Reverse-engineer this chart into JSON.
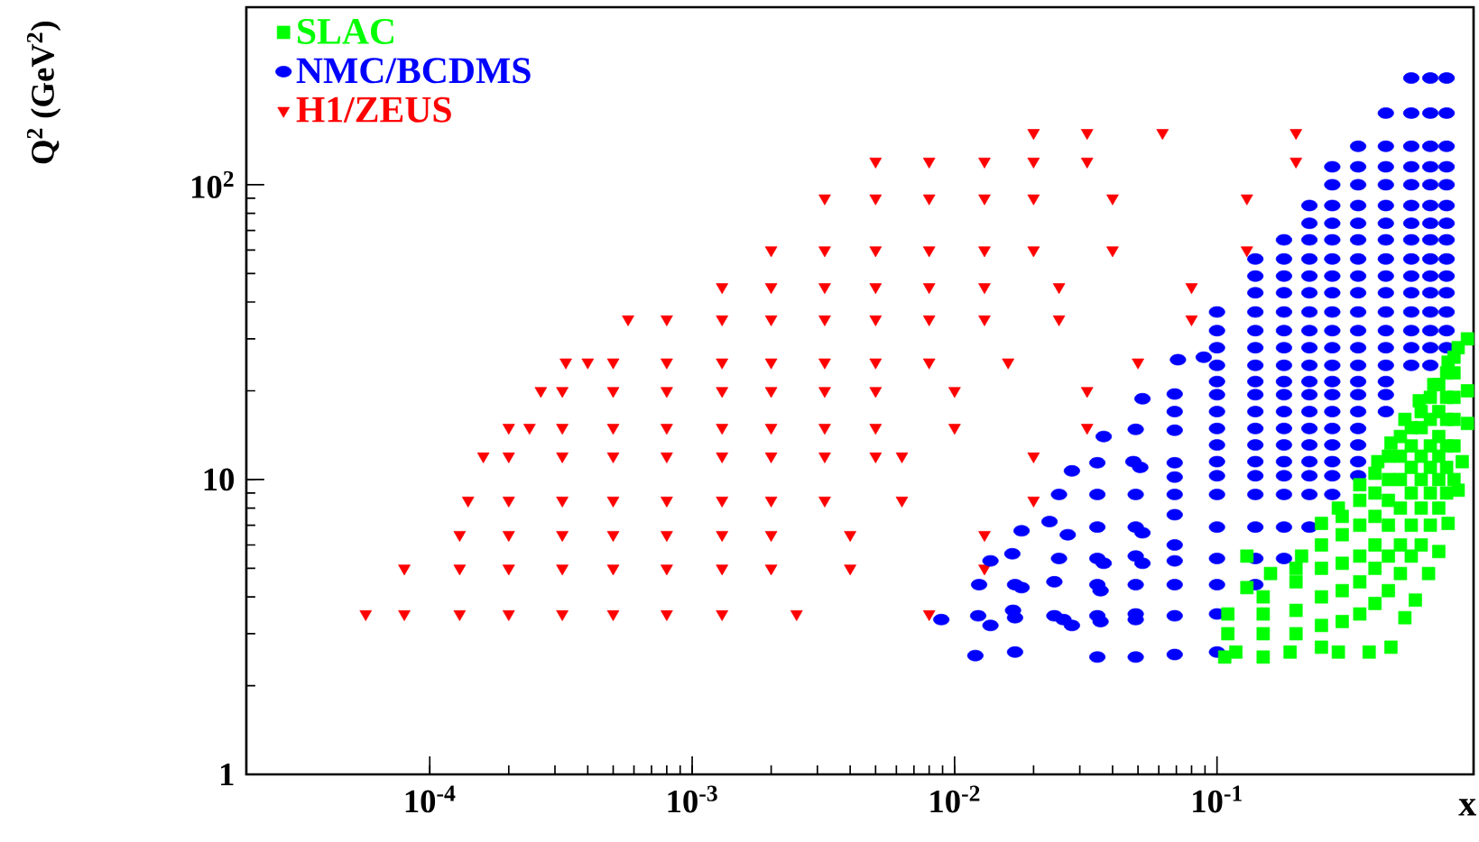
{
  "chart_data": {
    "type": "scatter",
    "xlabel": "x",
    "ylabel": "Q$^{2}$ (GeV$^{2}$)",
    "log": "xy",
    "legend": "top left",
    "xlim": [
      2e-05,
      0.95
    ],
    "ylim": [
      1,
      400
    ],
    "xticks": [
      {
        "value": 0.0001,
        "label": "10$^{-4}$"
      },
      {
        "value": 0.001,
        "label": "10$^{-3}$"
      },
      {
        "value": 0.01,
        "label": "10$^{-2}$"
      },
      {
        "value": 0.1,
        "label": "10$^{-1}$"
      }
    ],
    "yticks": [
      1,
      10,
      {
        "value": 100,
        "label": "10$^{2}$"
      }
    ],
    "series": [
      {
        "name": "SLAC",
        "color": "#00ff00",
        "marker": "square",
        "x": [
          0.9,
          0.83,
          0.76,
          0.67,
          0.59,
          0.52,
          0.46,
          0.41,
          0.35,
          0.29,
          0.25,
          0.21,
          0.16,
          0.13,
          0.13,
          0.11,
          0.11,
          0.107,
          0.118,
          0.15,
          0.19,
          0.25,
          0.29,
          0.38,
          0.46,
          0.52,
          0.57,
          0.64,
          0.7,
          0.76,
          0.83,
          0.86,
          0.9,
          0.9,
          0.15,
          0.15,
          0.15,
          0.2,
          0.2,
          0.2,
          0.2,
          0.25,
          0.25,
          0.25,
          0.25,
          0.3,
          0.3,
          0.3,
          0.3,
          0.3,
          0.35,
          0.35,
          0.35,
          0.35,
          0.35,
          0.4,
          0.4,
          0.4,
          0.4,
          0.4,
          0.4,
          0.45,
          0.45,
          0.45,
          0.45,
          0.45,
          0.45,
          0.5,
          0.5,
          0.5,
          0.5,
          0.5,
          0.5,
          0.55,
          0.55,
          0.55,
          0.55,
          0.55,
          0.55,
          0.6,
          0.6,
          0.6,
          0.6,
          0.6,
          0.6,
          0.65,
          0.65,
          0.65,
          0.65,
          0.65,
          0.65,
          0.7,
          0.7,
          0.7,
          0.7,
          0.7,
          0.7,
          0.75,
          0.75,
          0.75,
          0.75,
          0.75,
          0.75,
          0.8,
          0.8,
          0.8,
          0.8,
          0.8,
          0.8
        ],
        "values": [
          30,
          28,
          25,
          21,
          18.5,
          16,
          13.3,
          11.5,
          9.6,
          8,
          7.1,
          5.5,
          4.8,
          5.5,
          4.3,
          3.5,
          3,
          2.5,
          2.6,
          2.5,
          2.6,
          2.7,
          2.6,
          2.6,
          2.7,
          3.4,
          3.9,
          4.8,
          5.7,
          7.1,
          9.2,
          11.5,
          15.5,
          20,
          3,
          3.5,
          4,
          3,
          3.6,
          4.5,
          5,
          3.2,
          4,
          5,
          6,
          3.3,
          4.2,
          5.2,
          6.5,
          7.5,
          3.5,
          4.5,
          5.5,
          7,
          8.5,
          3.8,
          5,
          6,
          7.5,
          9,
          10.5,
          4.2,
          5.5,
          7,
          8.5,
          10,
          12,
          4.8,
          6,
          8,
          10,
          12,
          14,
          5.5,
          7,
          9,
          11,
          13,
          15,
          6,
          8,
          10,
          12,
          15,
          17,
          7,
          9,
          11,
          13,
          16,
          19,
          8,
          10,
          12,
          14,
          17,
          21,
          9,
          11,
          13,
          16,
          19,
          23,
          10,
          13,
          16,
          19,
          23,
          26
        ]
      },
      {
        "name": "NMC/BCDMS",
        "color": "#0000ff",
        "marker": "circle",
        "x": [
          0.75,
          0.75,
          0.75,
          0.75,
          0.75,
          0.75,
          0.75,
          0.75,
          0.75,
          0.75,
          0.75,
          0.75,
          0.75,
          0.75,
          0.65,
          0.65,
          0.65,
          0.65,
          0.65,
          0.65,
          0.65,
          0.65,
          0.65,
          0.65,
          0.65,
          0.65,
          0.65,
          0.65,
          0.65,
          0.55,
          0.55,
          0.55,
          0.55,
          0.55,
          0.55,
          0.55,
          0.55,
          0.55,
          0.55,
          0.55,
          0.55,
          0.55,
          0.55,
          0.55,
          0.44,
          0.44,
          0.44,
          0.44,
          0.44,
          0.44,
          0.44,
          0.44,
          0.44,
          0.44,
          0.44,
          0.44,
          0.44,
          0.44,
          0.44,
          0.44,
          0.44,
          0.345,
          0.345,
          0.345,
          0.345,
          0.345,
          0.345,
          0.345,
          0.345,
          0.345,
          0.345,
          0.345,
          0.345,
          0.345,
          0.345,
          0.345,
          0.345,
          0.345,
          0.345,
          0.345,
          0.345,
          0.275,
          0.275,
          0.275,
          0.275,
          0.275,
          0.275,
          0.275,
          0.275,
          0.275,
          0.275,
          0.275,
          0.275,
          0.275,
          0.275,
          0.275,
          0.275,
          0.275,
          0.275,
          0.275,
          0.275,
          0.225,
          0.225,
          0.225,
          0.225,
          0.225,
          0.225,
          0.225,
          0.225,
          0.225,
          0.225,
          0.225,
          0.225,
          0.225,
          0.225,
          0.225,
          0.225,
          0.225,
          0.225,
          0.225,
          0.18,
          0.18,
          0.18,
          0.18,
          0.18,
          0.18,
          0.18,
          0.18,
          0.18,
          0.18,
          0.18,
          0.18,
          0.18,
          0.18,
          0.18,
          0.18,
          0.18,
          0.18,
          0.14,
          0.14,
          0.14,
          0.14,
          0.14,
          0.14,
          0.14,
          0.14,
          0.14,
          0.14,
          0.14,
          0.14,
          0.14,
          0.14,
          0.14,
          0.14,
          0.14,
          0.14,
          0.1,
          0.1,
          0.1,
          0.1,
          0.1,
          0.1,
          0.1,
          0.1,
          0.1,
          0.1,
          0.1,
          0.1,
          0.1,
          0.1,
          0.1,
          0.1,
          0.1,
          0.071,
          0.089,
          0.052,
          0.069,
          0.069,
          0.049,
          0.037,
          0.069,
          0.035,
          0.028,
          0.048,
          0.051,
          0.069,
          0.069,
          0.025,
          0.035,
          0.049,
          0.069,
          0.018,
          0.023,
          0.027,
          0.035,
          0.049,
          0.052,
          0.069,
          0.069,
          0.0137,
          0.0166,
          0.025,
          0.035,
          0.037,
          0.049,
          0.052,
          0.069,
          0.0124,
          0.017,
          0.018,
          0.024,
          0.035,
          0.036,
          0.049,
          0.069,
          0.0089,
          0.0123,
          0.0137,
          0.0167,
          0.017,
          0.024,
          0.026,
          0.028,
          0.035,
          0.036,
          0.049,
          0.049,
          0.069,
          0.012,
          0.017,
          0.035,
          0.049,
          0.069
        ],
        "values": [
          230,
          175,
          135,
          115,
          100,
          85,
          74,
          65,
          56,
          49,
          43,
          37,
          32,
          28,
          230,
          175,
          135,
          115,
          100,
          85,
          74,
          65,
          56,
          49,
          43,
          37,
          32,
          28,
          24.4,
          230,
          175,
          135,
          115,
          100,
          85,
          74,
          65,
          56,
          49,
          43,
          37,
          32,
          28,
          24.4,
          175,
          135,
          115,
          100,
          85,
          74,
          65,
          56,
          49,
          43,
          37,
          32,
          28,
          24.4,
          21.5,
          19.4,
          17,
          135,
          115,
          100,
          85,
          74,
          65,
          56,
          49,
          43,
          37,
          32,
          28,
          24.4,
          21.5,
          19.4,
          17,
          14.9,
          13.1,
          11.5,
          10.3,
          115,
          100,
          85,
          74,
          65,
          56,
          49,
          43,
          37,
          32,
          28,
          24.4,
          21.5,
          19.4,
          17,
          14.9,
          13.1,
          11.5,
          10.3,
          8.9,
          85,
          74,
          65,
          56,
          49,
          43,
          37,
          32,
          28,
          24.4,
          21.5,
          19.4,
          17,
          14.9,
          13.1,
          11.5,
          10.3,
          8.9,
          6.9,
          65,
          56,
          49,
          43,
          37,
          32,
          28,
          24.4,
          21.5,
          19.4,
          17,
          14.9,
          13.1,
          11.5,
          10.3,
          8.9,
          6.9,
          5.4,
          56,
          49,
          43,
          37,
          32,
          28,
          24.4,
          21.5,
          19.4,
          17,
          14.9,
          13.1,
          11.5,
          10.3,
          8.9,
          6.9,
          5.4,
          4.4,
          37,
          32,
          28,
          24.4,
          21.5,
          19.4,
          17,
          14.9,
          13.1,
          11.5,
          10.3,
          8.9,
          6.9,
          5.4,
          4.4,
          3.5,
          2.6,
          25.5,
          26,
          18.8,
          19.5,
          17,
          14.8,
          14,
          14.7,
          11.4,
          10.7,
          11.5,
          11,
          11.4,
          10.2,
          8.9,
          8.9,
          8.9,
          8.9,
          6.7,
          7.2,
          6.5,
          6.9,
          6.9,
          6.6,
          7.6,
          6,
          5.3,
          5.6,
          5.4,
          5.4,
          5.2,
          5.5,
          5.2,
          5.3,
          4.4,
          4.4,
          4.3,
          4.5,
          4.4,
          4.2,
          4.4,
          4.4,
          3.35,
          3.45,
          3.2,
          3.6,
          3.4,
          3.45,
          3.35,
          3.2,
          3.45,
          3.3,
          3.5,
          3.35,
          3.45,
          2.53,
          2.6,
          2.5,
          2.5,
          2.55
        ]
      },
      {
        "name": "H1/ZEUS",
        "color": "#ff0000",
        "marker": "triangle",
        "x": [
          5.7e-05,
          8e-05,
          0.00013,
          0.0002,
          0.00032,
          0.0005,
          0.0008,
          0.0013,
          0.0025,
          0.008,
          8e-05,
          0.00013,
          0.0002,
          0.00032,
          0.0005,
          0.0008,
          0.0013,
          0.002,
          0.004,
          0.013,
          0.00013,
          0.0002,
          0.00032,
          0.0005,
          0.0008,
          0.0013,
          0.002,
          0.004,
          0.013,
          0.00014,
          0.0002,
          0.00032,
          0.0005,
          0.0008,
          0.0013,
          0.002,
          0.0032,
          0.0063,
          0.02,
          0.00016,
          0.0002,
          0.00032,
          0.0005,
          0.0008,
          0.0013,
          0.002,
          0.0032,
          0.005,
          0.0063,
          0.02,
          0.0002,
          0.00024,
          0.00032,
          0.0005,
          0.0008,
          0.0013,
          0.002,
          0.0032,
          0.005,
          0.01,
          0.032,
          0.000265,
          0.00032,
          0.0005,
          0.0008,
          0.0013,
          0.002,
          0.0032,
          0.005,
          0.01,
          0.032,
          0.00033,
          0.0004,
          0.0005,
          0.0008,
          0.0013,
          0.002,
          0.0032,
          0.005,
          0.008,
          0.016,
          0.05,
          0.00057,
          0.0008,
          0.0013,
          0.002,
          0.0032,
          0.005,
          0.008,
          0.013,
          0.025,
          0.08,
          0.0013,
          0.002,
          0.0032,
          0.005,
          0.008,
          0.013,
          0.025,
          0.08,
          0.002,
          0.0032,
          0.005,
          0.008,
          0.013,
          0.02,
          0.04,
          0.13,
          0.0032,
          0.005,
          0.008,
          0.013,
          0.02,
          0.04,
          0.13,
          0.005,
          0.008,
          0.013,
          0.02,
          0.032,
          0.2,
          0.02,
          0.032,
          0.062,
          0.2
        ],
        "values": [
          3.5,
          3.5,
          3.5,
          3.5,
          3.5,
          3.5,
          3.5,
          3.5,
          3.5,
          3.5,
          5,
          5,
          5,
          5,
          5,
          5,
          5,
          5,
          5,
          5,
          6.5,
          6.5,
          6.5,
          6.5,
          6.5,
          6.5,
          6.5,
          6.5,
          6.5,
          8.5,
          8.5,
          8.5,
          8.5,
          8.5,
          8.5,
          8.5,
          8.5,
          8.5,
          8.5,
          12,
          12,
          12,
          12,
          12,
          12,
          12,
          12,
          12,
          12,
          12,
          15,
          15,
          15,
          15,
          15,
          15,
          15,
          15,
          15,
          15,
          15,
          20,
          20,
          20,
          20,
          20,
          20,
          20,
          20,
          20,
          20,
          25,
          25,
          25,
          25,
          25,
          25,
          25,
          25,
          25,
          25,
          25,
          35,
          35,
          35,
          35,
          35,
          35,
          35,
          35,
          35,
          35,
          45,
          45,
          45,
          45,
          45,
          45,
          45,
          45,
          60,
          60,
          60,
          60,
          60,
          60,
          60,
          60,
          90,
          90,
          90,
          90,
          90,
          90,
          90,
          120,
          120,
          120,
          120,
          120,
          120,
          150,
          150,
          150,
          150
        ]
      }
    ]
  }
}
